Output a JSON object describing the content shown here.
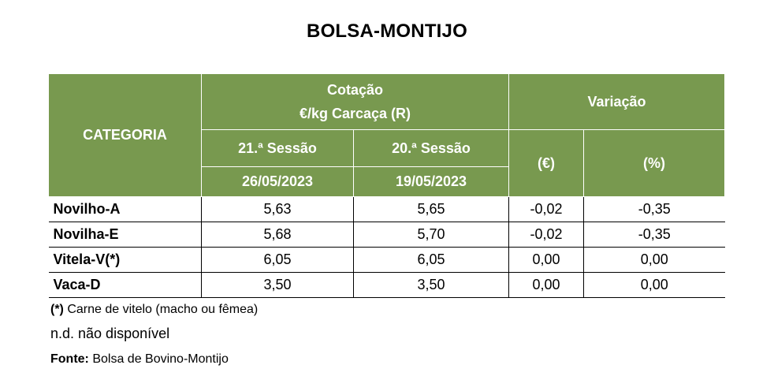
{
  "title": "BOLSA-MONTIJO",
  "table": {
    "header": {
      "categoria": "CATEGORIA",
      "cotacao_line1": "Cotação",
      "cotacao_line2": "€/kg Carcaça (R)",
      "variacao": "Variação",
      "session_current": "21.ª Sessão",
      "session_previous": "20.ª Sessão",
      "date_current": "26/05/2023",
      "date_previous": "19/05/2023",
      "var_eur": "(€)",
      "var_pct": "(%)"
    },
    "rows": [
      {
        "categoria": "Novilho-A",
        "current": "5,63",
        "previous": "5,65",
        "var_eur": "-0,02",
        "var_pct": "-0,35"
      },
      {
        "categoria": "Novilha-E",
        "current": "5,68",
        "previous": "5,70",
        "var_eur": "-0,02",
        "var_pct": "-0,35"
      },
      {
        "categoria": "Vitela-V(*)",
        "current": "6,05",
        "previous": "6,05",
        "var_eur": "0,00",
        "var_pct": "0,00"
      },
      {
        "categoria": "Vaca-D",
        "current": "3,50",
        "previous": "3,50",
        "var_eur": "0,00",
        "var_pct": "0,00"
      }
    ]
  },
  "notes": {
    "asterisk_mark": "(*)",
    "asterisk_text": " Carne de vitelo (macho ou fêmea)",
    "nd": "n.d. não disponível",
    "source_label": "Fonte:",
    "source_text": " Bolsa de Bovino-Montijo"
  },
  "colors": {
    "header_bg": "#78994f",
    "header_text": "#ffffff"
  }
}
